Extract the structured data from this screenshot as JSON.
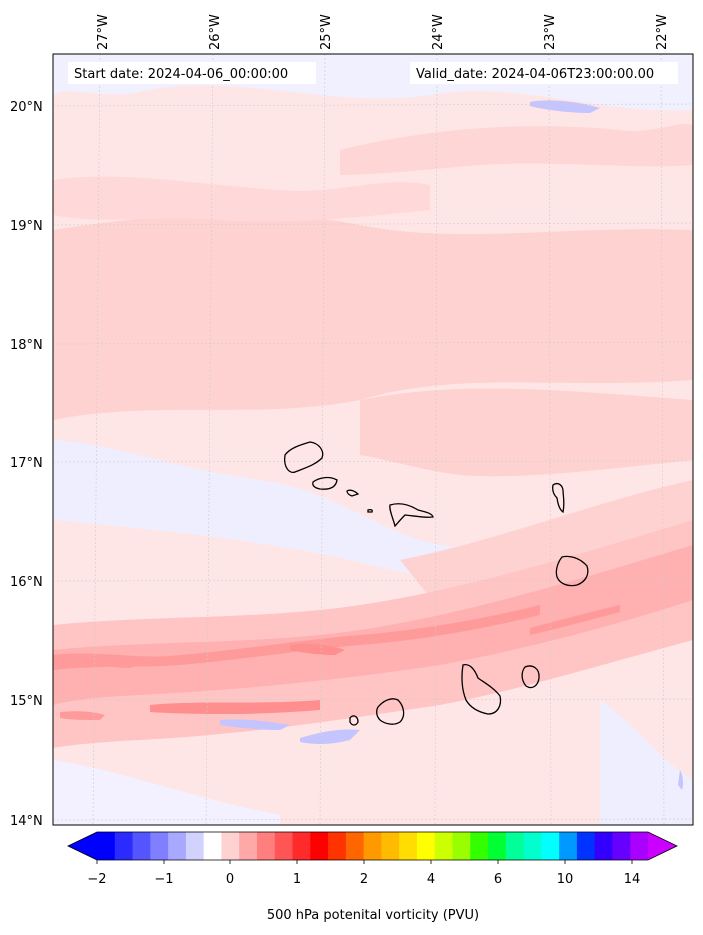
{
  "header": {
    "start_date": "Start date: 2024-04-06_00:00:00",
    "valid_date": "Valid_date: 2024-04-06T23:00:00.00"
  },
  "longitude_labels": [
    "27°W",
    "26°W",
    "25°W",
    "24°W",
    "23°W",
    "22°W"
  ],
  "latitude_labels": [
    "20°N",
    "19°N",
    "18°N",
    "17°N",
    "16°N",
    "15°N",
    "14°N"
  ],
  "colorbar": {
    "label": "500 hPa potenital vorticity (PVU)",
    "ticks": [
      "−2",
      "−1",
      "0",
      "1",
      "2",
      "4",
      "6",
      "10",
      "14"
    ],
    "colors": [
      "#0000ff",
      "#2b2bff",
      "#5555ff",
      "#7f7fff",
      "#a8a8ff",
      "#d2d2ff",
      "#ffffff",
      "#ffd2d2",
      "#ffa8a8",
      "#ff7f7f",
      "#ff5555",
      "#ff2b2b",
      "#ff0000",
      "#ff3300",
      "#ff6600",
      "#ff9900",
      "#ffbb00",
      "#ffdd00",
      "#ffff00",
      "#ccff00",
      "#99ff00",
      "#33ff00",
      "#00ff33",
      "#00ff99",
      "#00ffcc",
      "#00ffff",
      "#0099ff",
      "#0033ff",
      "#3300ff",
      "#6600ff",
      "#aa00ff"
    ],
    "under_color": "#0000ff",
    "over_color": "#cc00ff"
  },
  "islands": [
    "Santo Antão",
    "São Vicente",
    "Santa Luzia",
    "São Nicolau",
    "Sal",
    "Boa Vista",
    "Maio",
    "Santiago",
    "Fogo",
    "Brava"
  ]
}
